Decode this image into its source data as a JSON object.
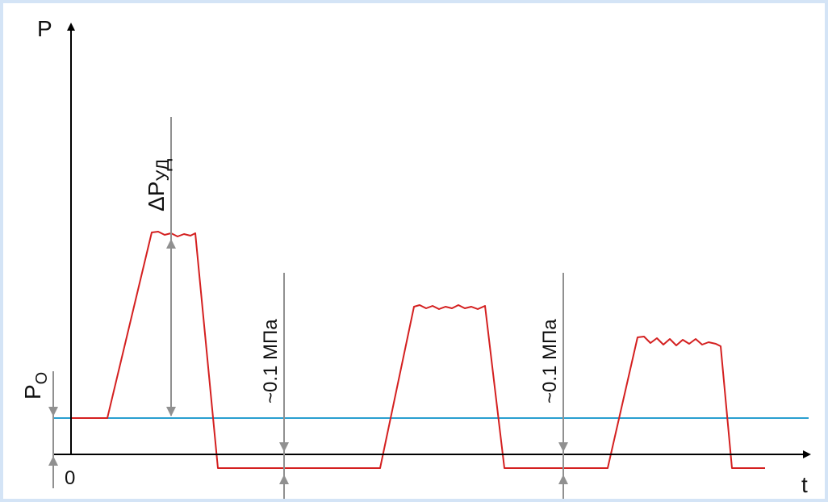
{
  "diagram": {
    "y_axis_label": "P",
    "x_axis_label": "t",
    "origin_label": "0",
    "baseline_label_main": "P",
    "baseline_label_sub": "O",
    "delta_label_main": "ΔP",
    "delta_label_sub": "УД",
    "gap_label_1": "~0.1 МПа",
    "gap_label_2": "~0.1 МПа"
  },
  "colors": {
    "background": "#d4e4f6",
    "panel": "#ffffff",
    "axis": "#000000",
    "signal": "#d42020",
    "baseline": "#2a9fd0",
    "dimension": "#909090"
  }
}
